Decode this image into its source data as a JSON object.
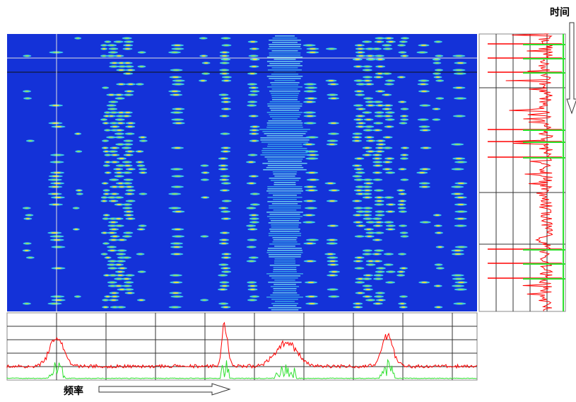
{
  "labels": {
    "time": "时间",
    "frequency": "频率"
  }
}
